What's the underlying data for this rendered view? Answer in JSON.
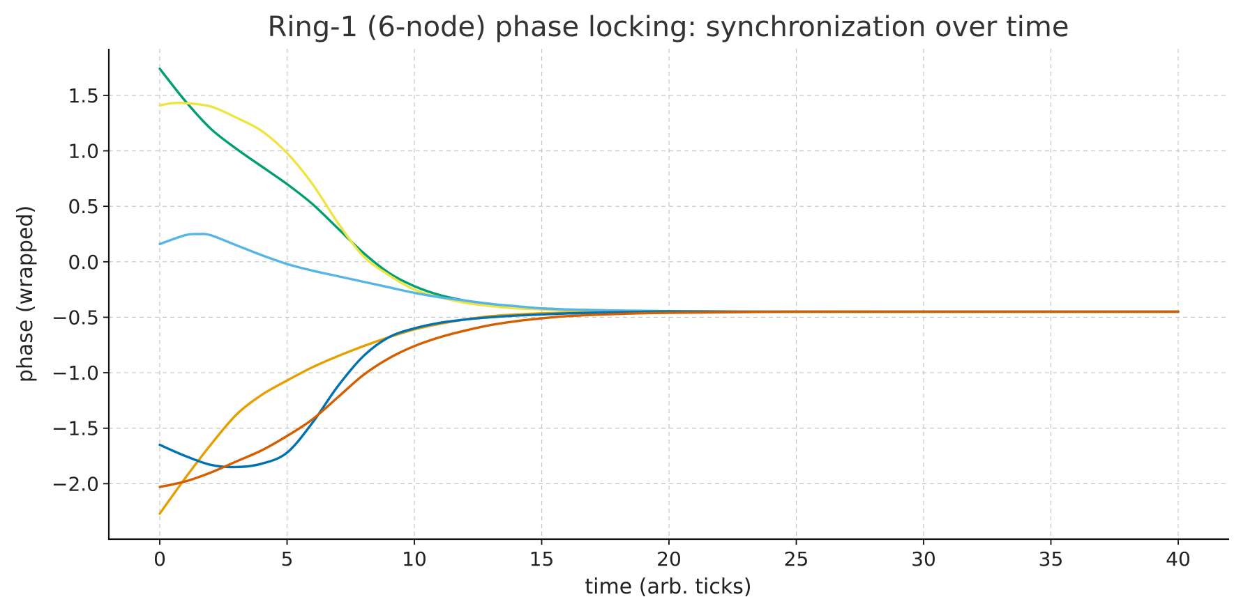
{
  "chart_data": {
    "type": "line",
    "title": "Ring-1 (6-node) phase locking: synchronization over time",
    "xlabel": "time (arb. ticks)",
    "ylabel": "phase (wrapped)",
    "xlim": [
      -2,
      42
    ],
    "ylim": [
      -2.5,
      1.92
    ],
    "xticks": [
      0,
      5,
      10,
      15,
      20,
      25,
      30,
      35,
      40
    ],
    "yticks": [
      1.5,
      1.0,
      0.5,
      0.0,
      -0.5,
      -1.0,
      -1.5,
      -2.0
    ],
    "xtick_labels": [
      "0",
      "5",
      "10",
      "15",
      "20",
      "25",
      "30",
      "35",
      "40"
    ],
    "ytick_labels": [
      "1.5",
      "1.0",
      "0.5",
      "0.0",
      "−0.5",
      "−1.0",
      "−1.5",
      "−2.0"
    ],
    "grid": true,
    "series": [
      {
        "color": "#009e73",
        "x": [
          0,
          1,
          2,
          3,
          4,
          5,
          6,
          7,
          8,
          9,
          10,
          11,
          12,
          13,
          14,
          15,
          16,
          18,
          20,
          25,
          30,
          35,
          40
        ],
        "y": [
          1.74,
          1.45,
          1.2,
          1.02,
          0.86,
          0.7,
          0.52,
          0.3,
          0.08,
          -0.1,
          -0.22,
          -0.3,
          -0.35,
          -0.38,
          -0.41,
          -0.42,
          -0.43,
          -0.44,
          -0.445,
          -0.45,
          -0.45,
          -0.45,
          -0.45
        ]
      },
      {
        "color": "#f0e442",
        "x": [
          0,
          0.5,
          1,
          2,
          3,
          4,
          5,
          6,
          7,
          8,
          9,
          10,
          11,
          12,
          13,
          14,
          15,
          16,
          18,
          20,
          25,
          30,
          35,
          40
        ],
        "y": [
          1.41,
          1.43,
          1.43,
          1.4,
          1.3,
          1.18,
          0.98,
          0.7,
          0.35,
          0.05,
          -0.12,
          -0.25,
          -0.32,
          -0.37,
          -0.4,
          -0.42,
          -0.43,
          -0.44,
          -0.445,
          -0.45,
          -0.45,
          -0.45,
          -0.45,
          -0.45
        ]
      },
      {
        "color": "#56b4e9",
        "x": [
          0,
          1,
          1.5,
          2,
          3,
          4,
          5,
          6,
          7,
          8,
          9,
          10,
          11,
          12,
          13,
          14,
          15,
          16,
          18,
          20,
          25,
          30,
          35,
          40
        ],
        "y": [
          0.16,
          0.24,
          0.25,
          0.24,
          0.15,
          0.06,
          -0.02,
          -0.08,
          -0.13,
          -0.18,
          -0.23,
          -0.28,
          -0.32,
          -0.35,
          -0.38,
          -0.4,
          -0.42,
          -0.43,
          -0.44,
          -0.45,
          -0.45,
          -0.45,
          -0.45,
          -0.45
        ]
      },
      {
        "color": "#e69f00",
        "x": [
          0,
          1,
          2,
          3,
          4,
          5,
          6,
          7,
          8,
          9,
          10,
          11,
          12,
          13,
          14,
          15,
          16,
          18,
          20,
          25,
          30,
          35,
          40
        ],
        "y": [
          -2.27,
          -1.95,
          -1.65,
          -1.38,
          -1.2,
          -1.07,
          -0.95,
          -0.85,
          -0.76,
          -0.68,
          -0.61,
          -0.56,
          -0.52,
          -0.49,
          -0.475,
          -0.465,
          -0.46,
          -0.455,
          -0.45,
          -0.45,
          -0.45,
          -0.45,
          -0.45
        ]
      },
      {
        "color": "#0072b2",
        "x": [
          0,
          1,
          2,
          3,
          4,
          5,
          6,
          7,
          8,
          9,
          10,
          11,
          12,
          13,
          14,
          15,
          16,
          18,
          20,
          25,
          30,
          35,
          40
        ],
        "y": [
          -1.65,
          -1.75,
          -1.83,
          -1.85,
          -1.82,
          -1.72,
          -1.45,
          -1.12,
          -0.85,
          -0.68,
          -0.6,
          -0.55,
          -0.52,
          -0.5,
          -0.485,
          -0.475,
          -0.465,
          -0.455,
          -0.45,
          -0.45,
          -0.45,
          -0.45,
          -0.45
        ]
      },
      {
        "color": "#d55e00",
        "x": [
          0,
          1,
          2,
          3,
          4,
          5,
          6,
          7,
          8,
          9,
          10,
          11,
          12,
          13,
          14,
          15,
          16,
          18,
          20,
          25,
          30,
          35,
          40
        ],
        "y": [
          -2.03,
          -1.98,
          -1.9,
          -1.8,
          -1.7,
          -1.57,
          -1.42,
          -1.22,
          -1.02,
          -0.87,
          -0.76,
          -0.68,
          -0.62,
          -0.57,
          -0.535,
          -0.51,
          -0.49,
          -0.47,
          -0.46,
          -0.45,
          -0.45,
          -0.45,
          -0.45
        ]
      }
    ]
  }
}
